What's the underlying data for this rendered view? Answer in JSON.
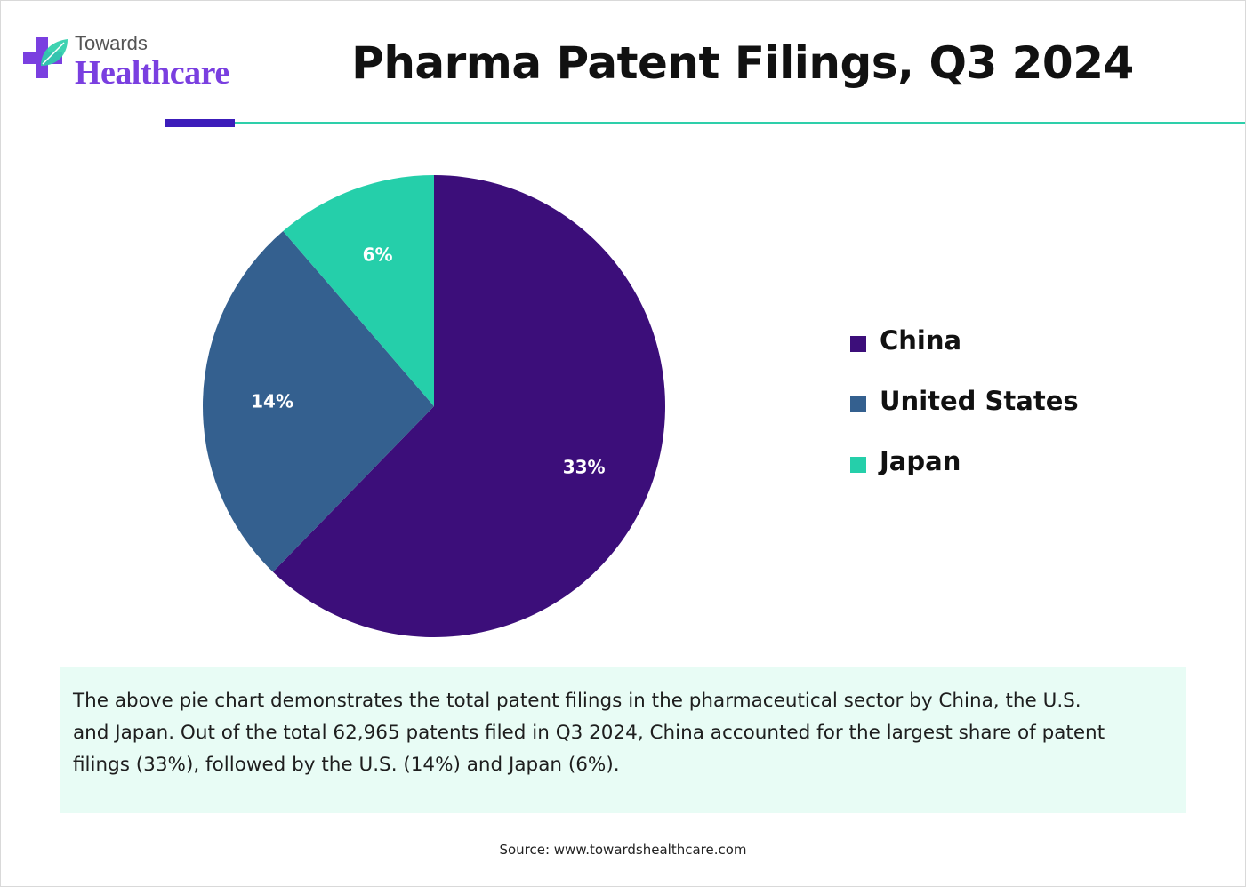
{
  "brand": {
    "logo_top": "Towards",
    "logo_bottom": "Healthcare",
    "icon": "medical-cross-leaf-icon",
    "colors": {
      "cross": "#7a3fe0",
      "leaf": "#2ecfaa"
    }
  },
  "rule_colors": {
    "dark": "#3c1dba",
    "teal": "#2ecfaa"
  },
  "chart_data": {
    "type": "pie",
    "title": "Pharma Patent Filings, Q3 2024",
    "categories": [
      "China",
      "United States",
      "Japan"
    ],
    "values": [
      33,
      14,
      6
    ],
    "labels": [
      "33%",
      "14%",
      "6%"
    ],
    "colors": [
      "#3c0e7a",
      "#34608f",
      "#25cfaa"
    ],
    "legend_position": "right"
  },
  "description": "The above pie chart demonstrates the total patent filings in the pharmaceutical sector by China, the U.S. and Japan. Out of the total 62,965 patents filed in Q3 2024, China accounted for the largest share of patent filings (33%), followed by the U.S. (14%) and Japan (6%).",
  "description_bg": "#e8fcf5",
  "source": "Source: www.towardshealthcare.com"
}
